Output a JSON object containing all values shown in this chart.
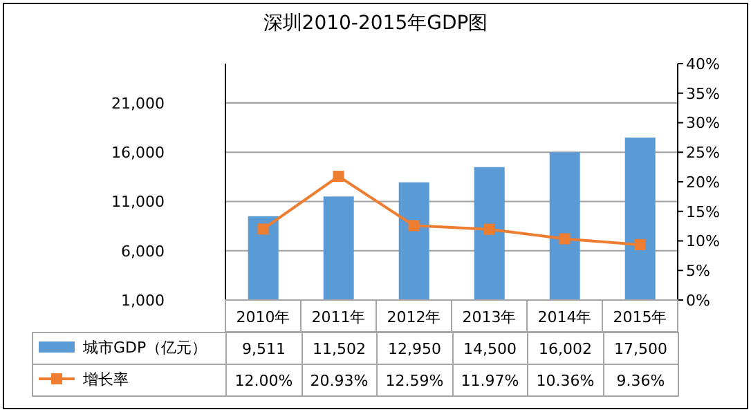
{
  "chart_data": {
    "type": "bar",
    "title": "深圳2010-2015年GDP图",
    "categories": [
      "2010年",
      "2011年",
      "2012年",
      "2013年",
      "2014年",
      "2015年"
    ],
    "series": [
      {
        "name": "城市GDP（亿元）",
        "color": "#5b9bd5",
        "values": [
          9511,
          11502,
          12950,
          14500,
          16002,
          17500
        ],
        "value_labels": [
          "9,511",
          "11,502",
          "12,950",
          "14,500",
          "16,002",
          "17,500"
        ]
      },
      {
        "name": "增长率",
        "type": "line",
        "axis": "y2",
        "color": "#ed7d31",
        "marker": "square",
        "values": [
          12.0,
          20.93,
          12.59,
          11.97,
          10.36,
          9.36
        ],
        "value_labels": [
          "12.00%",
          "20.93%",
          "12.59%",
          "11.97%",
          "10.36%",
          "9.36%"
        ]
      }
    ],
    "ylim": [
      1000,
      25000
    ],
    "yticks": [
      {
        "value": 1000,
        "label": "1,000"
      },
      {
        "value": 6000,
        "label": "6,000"
      },
      {
        "value": 11000,
        "label": "11,000"
      },
      {
        "value": 16000,
        "label": "16,000"
      },
      {
        "value": 21000,
        "label": "21,000"
      }
    ],
    "y2lim": [
      0,
      40
    ],
    "y2ticks": [
      {
        "value": 0,
        "label": "0%"
      },
      {
        "value": 5,
        "label": "5%"
      },
      {
        "value": 10,
        "label": "10%"
      },
      {
        "value": 15,
        "label": "15%"
      },
      {
        "value": 20,
        "label": "20%"
      },
      {
        "value": 25,
        "label": "25%"
      },
      {
        "value": 30,
        "label": "30%"
      },
      {
        "value": 35,
        "label": "35%"
      },
      {
        "value": 40,
        "label": "40%"
      }
    ],
    "grid": "y",
    "legend": "bottom"
  }
}
